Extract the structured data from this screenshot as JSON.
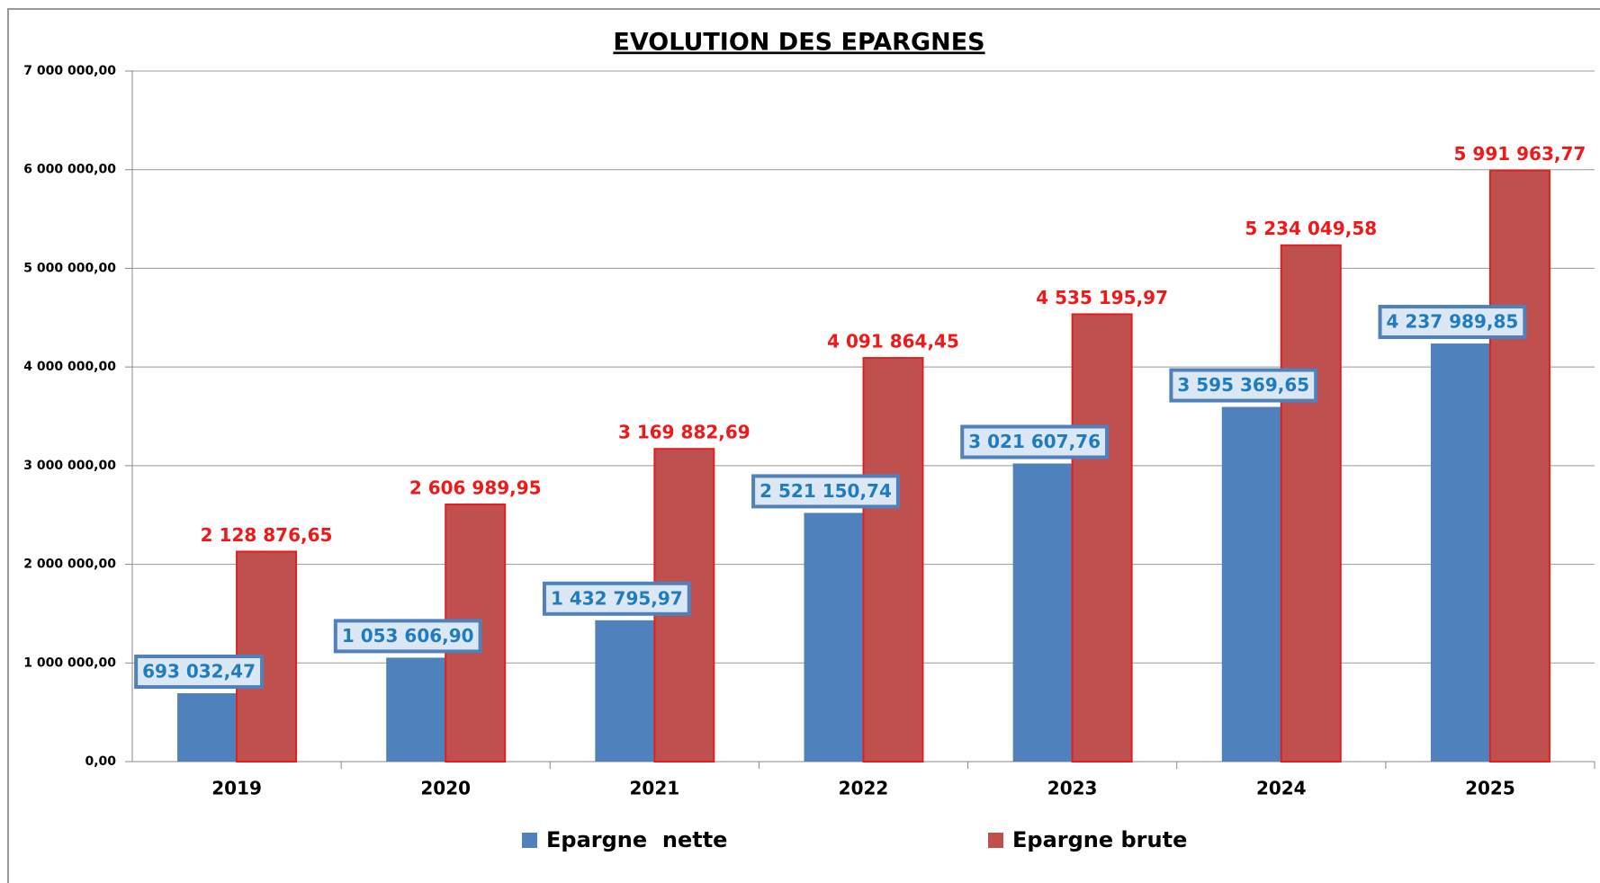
{
  "chart_data": {
    "type": "bar",
    "title": "EVOLUTION DES EPARGNES",
    "categories": [
      "2019",
      "2020",
      "2021",
      "2022",
      "2023",
      "2024",
      "2025"
    ],
    "series": [
      {
        "name": "Epargne  nette",
        "color": "#4f81bd",
        "values": [
          693032.47,
          1053606.9,
          1432795.97,
          2521150.74,
          3021607.76,
          3595369.65,
          4237989.85
        ],
        "value_labels": [
          "693 032,47",
          "1 053 606,90",
          "1 432 795,97",
          "2 521 150,74",
          "3 021 607,76",
          "3 595 369,65",
          "4 237 989,85"
        ]
      },
      {
        "name": "Epargne brute",
        "color": "#c0504d",
        "values": [
          2128876.65,
          2606989.95,
          3169882.69,
          4091864.45,
          4535195.97,
          5234049.58,
          5991963.77
        ],
        "value_labels": [
          "2 128 876,65",
          "2 606 989,95",
          "3 169 882,69",
          "4 091 864,45",
          "4 535 195,97",
          "5 234 049,58",
          "5 991 963,77"
        ]
      }
    ],
    "ylim": [
      0,
      7000000
    ],
    "yticks": [
      {
        "value": 0,
        "label": "0,00"
      },
      {
        "value": 1000000,
        "label": "1 000 000,00"
      },
      {
        "value": 2000000,
        "label": "2 000 000,00"
      },
      {
        "value": 3000000,
        "label": "3 000 000,00"
      },
      {
        "value": 4000000,
        "label": "4 000 000,00"
      },
      {
        "value": 5000000,
        "label": "5 000 000,00"
      },
      {
        "value": 6000000,
        "label": "6 000 000,00"
      },
      {
        "value": 7000000,
        "label": "7 000 000,00"
      }
    ],
    "grid": true,
    "legend": "bottom"
  }
}
